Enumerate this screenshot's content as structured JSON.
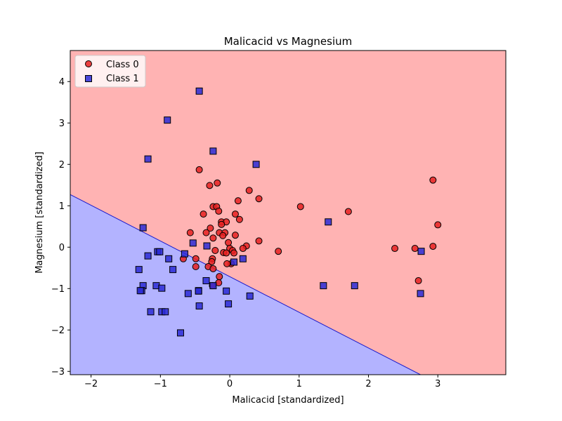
{
  "chart_data": {
    "type": "scatter",
    "title": "Malicacid vs Magnesium",
    "xlabel": "Malicacid [standardized]",
    "ylabel": "Magnesium [standardized]",
    "xlim": [
      -2.3,
      3.98
    ],
    "ylim": [
      -3.08,
      4.75
    ],
    "xticks": [
      -2,
      -1,
      0,
      1,
      2,
      3
    ],
    "yticks": [
      -3,
      -2,
      -1,
      0,
      1,
      2,
      3,
      4
    ],
    "grid": false,
    "legend_position": "top-left",
    "decision_boundary": {
      "points": [
        [
          -2.3,
          1.27
        ],
        [
          2.75,
          -3.08
        ]
      ],
      "class_1_region": "below",
      "class_0_region": "above"
    },
    "region_colors": {
      "class_0": "#ffb3b3",
      "class_1": "#b3b3ff",
      "boundary": "#1a1acc"
    },
    "series": [
      {
        "name": "Class 0",
        "marker": "circle",
        "color": "#e62020",
        "points": [
          [
            -0.44,
            1.87
          ],
          [
            -0.29,
            1.49
          ],
          [
            -0.18,
            1.55
          ],
          [
            0.28,
            1.37
          ],
          [
            0.42,
            1.17
          ],
          [
            0.12,
            1.12
          ],
          [
            -0.24,
            0.98
          ],
          [
            -0.19,
            0.98
          ],
          [
            -0.16,
            0.87
          ],
          [
            -0.38,
            0.8
          ],
          [
            0.08,
            0.8
          ],
          [
            0.14,
            0.67
          ],
          [
            -0.12,
            0.61
          ],
          [
            -0.05,
            0.61
          ],
          [
            -0.12,
            0.55
          ],
          [
            -0.28,
            0.46
          ],
          [
            -0.57,
            0.35
          ],
          [
            -0.34,
            0.35
          ],
          [
            -0.15,
            0.35
          ],
          [
            -0.07,
            0.35
          ],
          [
            0.08,
            0.29
          ],
          [
            -0.1,
            0.28
          ],
          [
            -0.24,
            0.22
          ],
          [
            -0.02,
            0.11
          ],
          [
            0.24,
            0.03
          ],
          [
            0.19,
            -0.03
          ],
          [
            0.0,
            -0.03
          ],
          [
            -0.21,
            -0.08
          ],
          [
            0.04,
            -0.08
          ],
          [
            -0.09,
            -0.13
          ],
          [
            -0.05,
            -0.14
          ],
          [
            0.06,
            -0.14
          ],
          [
            -0.67,
            -0.28
          ],
          [
            -0.49,
            -0.28
          ],
          [
            -0.25,
            -0.28
          ],
          [
            -0.26,
            -0.35
          ],
          [
            0.02,
            -0.4
          ],
          [
            -0.04,
            -0.4
          ],
          [
            -0.49,
            -0.47
          ],
          [
            -0.31,
            -0.47
          ],
          [
            -0.24,
            -0.52
          ],
          [
            -0.15,
            -0.71
          ],
          [
            -0.16,
            -0.86
          ],
          [
            -0.25,
            -0.93
          ],
          [
            0.42,
            0.15
          ],
          [
            0.7,
            -0.1
          ],
          [
            1.02,
            0.98
          ],
          [
            1.71,
            0.86
          ],
          [
            2.38,
            -0.03
          ],
          [
            2.67,
            -0.03
          ],
          [
            2.93,
            0.02
          ],
          [
            2.93,
            1.62
          ],
          [
            3.0,
            0.54
          ],
          [
            2.72,
            -0.81
          ]
        ]
      },
      {
        "name": "Class 1",
        "marker": "square",
        "color": "#2a2ad6",
        "points": [
          [
            -0.44,
            3.77
          ],
          [
            -0.9,
            3.07
          ],
          [
            -1.18,
            2.13
          ],
          [
            -0.24,
            2.32
          ],
          [
            0.38,
            2.0
          ],
          [
            1.42,
            0.61
          ],
          [
            -1.25,
            0.47
          ],
          [
            -0.53,
            0.1
          ],
          [
            -0.33,
            0.03
          ],
          [
            -1.18,
            -0.21
          ],
          [
            -1.04,
            -0.11
          ],
          [
            -1.01,
            -0.11
          ],
          [
            -0.65,
            -0.16
          ],
          [
            -0.88,
            -0.28
          ],
          [
            0.19,
            -0.28
          ],
          [
            0.06,
            -0.36
          ],
          [
            -1.31,
            -0.54
          ],
          [
            -0.82,
            -0.54
          ],
          [
            -0.34,
            -0.81
          ],
          [
            -0.24,
            -0.93
          ],
          [
            -1.25,
            -0.93
          ],
          [
            -1.06,
            -0.93
          ],
          [
            -0.98,
            -0.99
          ],
          [
            -0.45,
            -1.05
          ],
          [
            -0.45,
            -1.06
          ],
          [
            -1.27,
            -1.05
          ],
          [
            -1.29,
            -1.05
          ],
          [
            -0.05,
            -1.06
          ],
          [
            -0.6,
            -1.12
          ],
          [
            0.29,
            -1.18
          ],
          [
            -0.44,
            -1.42
          ],
          [
            -0.02,
            -1.37
          ],
          [
            -1.14,
            -1.56
          ],
          [
            -0.98,
            -1.56
          ],
          [
            -0.93,
            -1.56
          ],
          [
            -0.71,
            -2.07
          ],
          [
            1.35,
            -0.93
          ],
          [
            1.8,
            -0.93
          ],
          [
            2.76,
            -0.1
          ],
          [
            2.75,
            -1.12
          ]
        ]
      }
    ]
  }
}
